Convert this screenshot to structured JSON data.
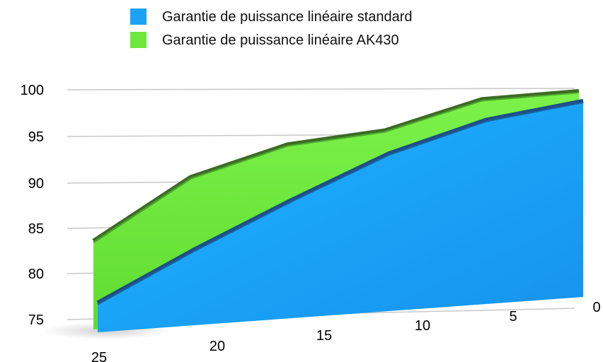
{
  "chart_data": {
    "type": "area",
    "x": [
      25,
      20,
      15,
      10,
      5,
      0
    ],
    "series": [
      {
        "name": "Garantie de puissance linéaire standard",
        "values": [
          78.0,
          82.9,
          87.6,
          92.2,
          95.6,
          97.5
        ],
        "color": "#1aa3f5"
      },
      {
        "name": "Garantie de puissance linéaire AK430",
        "values": [
          84.0,
          90.1,
          93.2,
          94.4,
          97.6,
          98.3
        ],
        "color": "#6ee83c"
      }
    ],
    "x_ticks": [
      "25",
      "20",
      "15",
      "10",
      "5",
      "0"
    ],
    "y_ticks": [
      "75",
      "80",
      "85",
      "90",
      "95",
      "100"
    ],
    "ylim": [
      75,
      100
    ],
    "xlim": [
      25,
      0
    ],
    "grid": true,
    "legend_position": "top"
  }
}
